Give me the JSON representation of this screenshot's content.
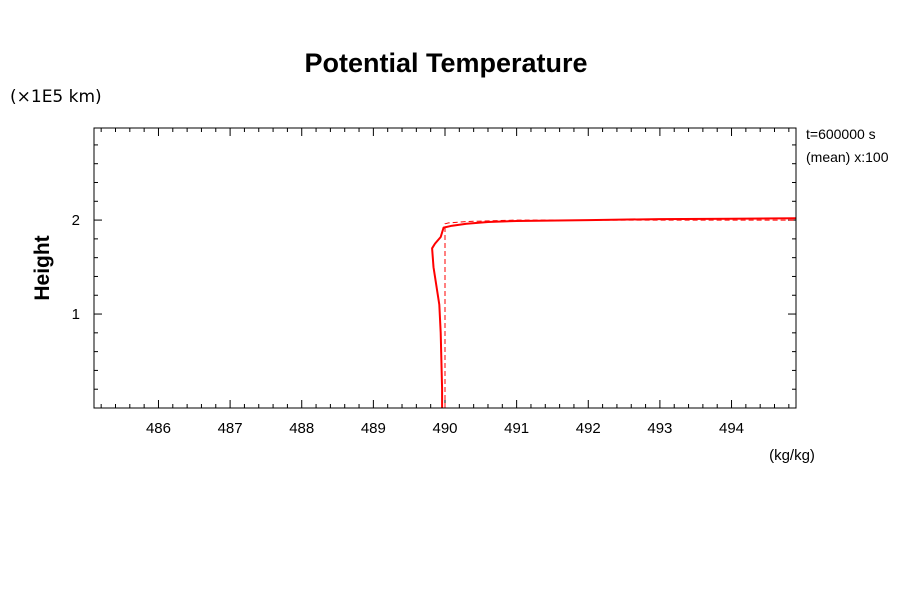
{
  "chart_data": {
    "type": "line",
    "title": "Potential Temperature",
    "y_units_label": "(×1E5 km)",
    "ylabel": "Height",
    "x_units_label": "(kg/kg)",
    "annotations": [
      "t=600000 s",
      "(mean) x:100"
    ],
    "xlim": [
      485.1,
      494.9
    ],
    "ylim": [
      0,
      2.98
    ],
    "x_ticks": [
      486,
      487,
      488,
      489,
      490,
      491,
      492,
      493,
      494
    ],
    "y_ticks": [
      1,
      2
    ],
    "grid": false,
    "series": [
      {
        "style": "solid",
        "color": "#ff0000",
        "points": [
          [
            489.96,
            0.0
          ],
          [
            489.96,
            0.2
          ],
          [
            489.95,
            0.5
          ],
          [
            489.94,
            0.8
          ],
          [
            489.92,
            1.1
          ],
          [
            489.88,
            1.3
          ],
          [
            489.84,
            1.5
          ],
          [
            489.82,
            1.7
          ],
          [
            489.86,
            1.75
          ],
          [
            489.94,
            1.82
          ],
          [
            489.98,
            1.92
          ],
          [
            490.1,
            1.94
          ],
          [
            490.3,
            1.96
          ],
          [
            490.6,
            1.98
          ],
          [
            491.0,
            1.99
          ],
          [
            492.0,
            2.0
          ],
          [
            493.0,
            2.01
          ],
          [
            494.0,
            2.015
          ],
          [
            494.9,
            2.02
          ]
        ]
      },
      {
        "style": "dashed",
        "color": "#ff0000",
        "points": [
          [
            490.0,
            0.0
          ],
          [
            490.0,
            1.96
          ],
          [
            490.05,
            1.97
          ],
          [
            490.3,
            1.985
          ],
          [
            491.0,
            2.0
          ],
          [
            494.9,
            2.0
          ]
        ]
      }
    ]
  }
}
